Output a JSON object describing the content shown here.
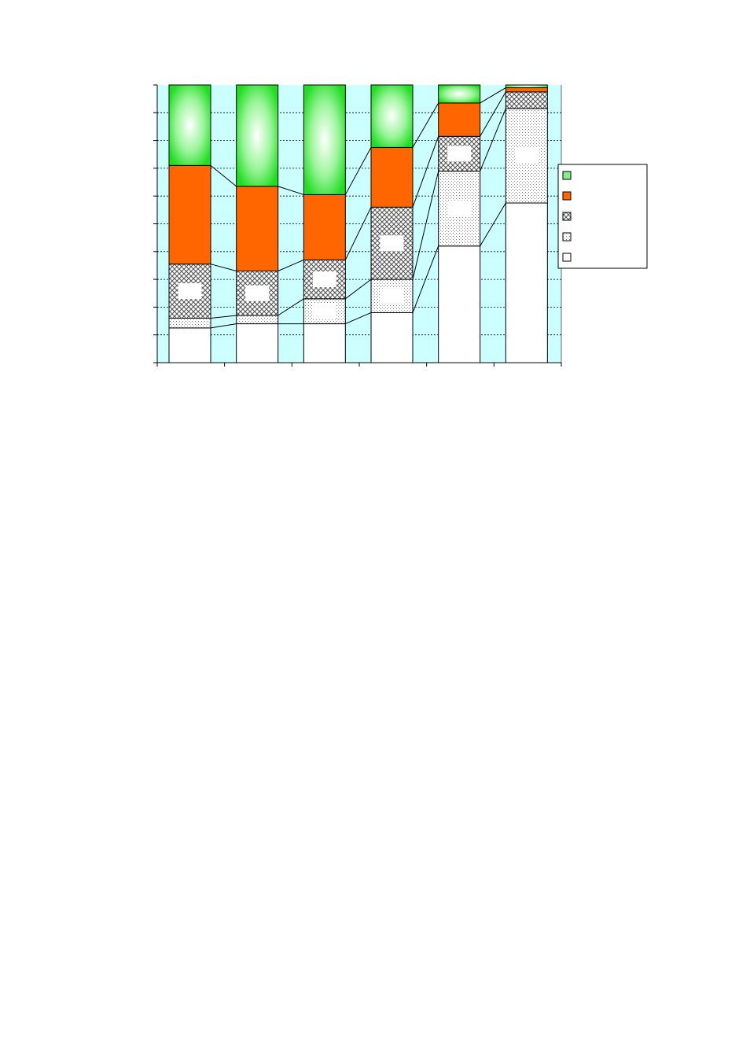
{
  "chart_data": {
    "type": "bar",
    "stacked": true,
    "percent_stacked": true,
    "title": "",
    "xlabel": "",
    "ylabel": "",
    "categories": [
      "",
      "",
      "",
      "",
      "",
      ""
    ],
    "ylim": [
      0,
      100
    ],
    "grid": true,
    "legend_position": "right",
    "series": [
      {
        "pattern": "solid",
        "color": "#ffffff",
        "values": [
          12.5,
          14,
          14,
          18,
          42,
          57.5
        ]
      },
      {
        "pattern": "dots",
        "color": "#ffffff",
        "values": [
          3.5,
          3,
          9,
          12,
          27,
          34
        ]
      },
      {
        "pattern": "crosshatch",
        "color": "#ffffff",
        "values": [
          19.5,
          16,
          14,
          26,
          12.5,
          6
        ]
      },
      {
        "pattern": "solid",
        "color": "#ff6600",
        "values": [
          35.5,
          30.5,
          23.5,
          21.5,
          12,
          1.5
        ]
      },
      {
        "pattern": "gradient",
        "color": "#33ee33",
        "values": [
          29,
          36.5,
          39.5,
          22.5,
          6.5,
          1
        ]
      }
    ],
    "plot_background": "#ccffff",
    "connector_lines": true
  }
}
